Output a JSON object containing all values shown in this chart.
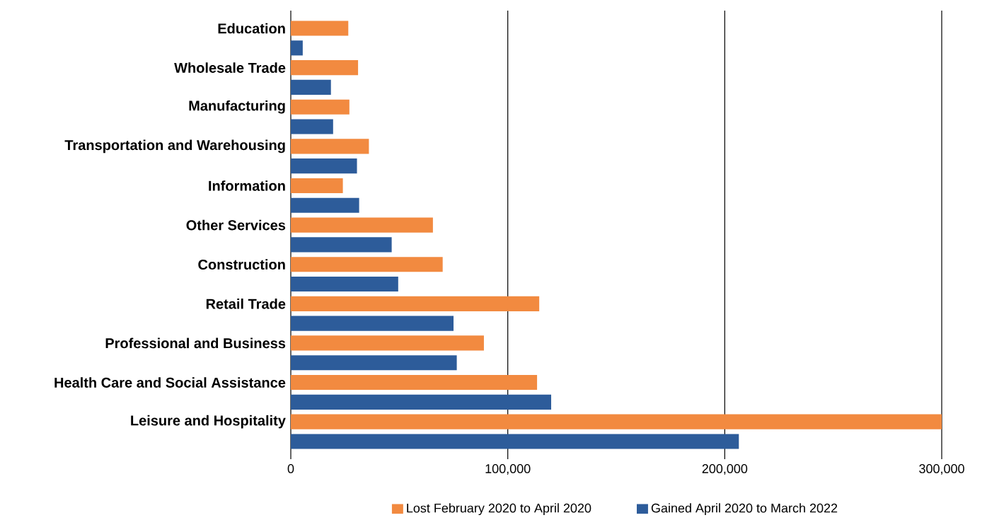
{
  "chart_data": {
    "type": "bar",
    "orientation": "horizontal",
    "categories": [
      "Education",
      "Wholesale Trade",
      "Manufacturing",
      "Transportation and Warehousing",
      "Information",
      "Other Services",
      "Construction",
      "Retail Trade",
      "Professional and Business",
      "Health Care and Social Assistance",
      "Leisure and Hospitality"
    ],
    "series": [
      {
        "name": "Lost February 2020 to April 2020",
        "color": "#f28a40",
        "values": [
          26500,
          31000,
          27000,
          36000,
          24000,
          65500,
          70000,
          114500,
          89000,
          113500,
          300000
        ]
      },
      {
        "name": "Gained April 2020 to March 2022",
        "color": "#2d5c9a",
        "values": [
          5500,
          18500,
          19500,
          30500,
          31500,
          46500,
          49500,
          75000,
          76500,
          120000,
          206500
        ]
      }
    ],
    "xlim": [
      0,
      300000
    ],
    "xticks": [
      0,
      {
        "value": 100000,
        "label": "100,000"
      },
      {
        "value": 200000,
        "label": "200,000"
      },
      {
        "value": 300000,
        "label": "300,000"
      }
    ],
    "grid": "x",
    "legend": "bottom"
  }
}
